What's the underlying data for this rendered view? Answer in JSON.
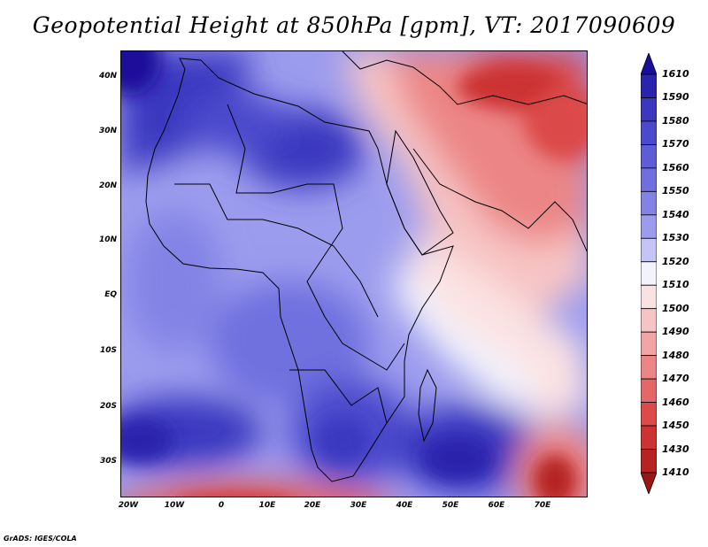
{
  "title": "Geopotential Height at 850hPa [gpm], VT: 2017090609",
  "credit": "GrADS: IGES/COLA",
  "latitude_labels": [
    "40N",
    "30N",
    "20N",
    "10N",
    "EQ",
    "10S",
    "20S",
    "30S"
  ],
  "longitude_labels": [
    "20W",
    "10W",
    "0",
    "10E",
    "20E",
    "30E",
    "40E",
    "50E",
    "60E",
    "70E"
  ],
  "colorbar": {
    "levels": [
      "1610",
      "1590",
      "1580",
      "1570",
      "1560",
      "1550",
      "1540",
      "1530",
      "1520",
      "1510",
      "1500",
      "1490",
      "1480",
      "1470",
      "1460",
      "1450",
      "1430",
      "1410"
    ],
    "colors": [
      "#1a0f9a",
      "#2a24ac",
      "#3b37bf",
      "#4c4acc",
      "#5d5dd6",
      "#6f6fdf",
      "#8383e6",
      "#9c9cee",
      "#c4c4f5",
      "#f3f3fb",
      "#fbe2e2",
      "#f7c4c4",
      "#f2a5a5",
      "#ec8686",
      "#e56767",
      "#dc4a4a",
      "#cc3333",
      "#b52323",
      "#9a1616"
    ]
  }
}
